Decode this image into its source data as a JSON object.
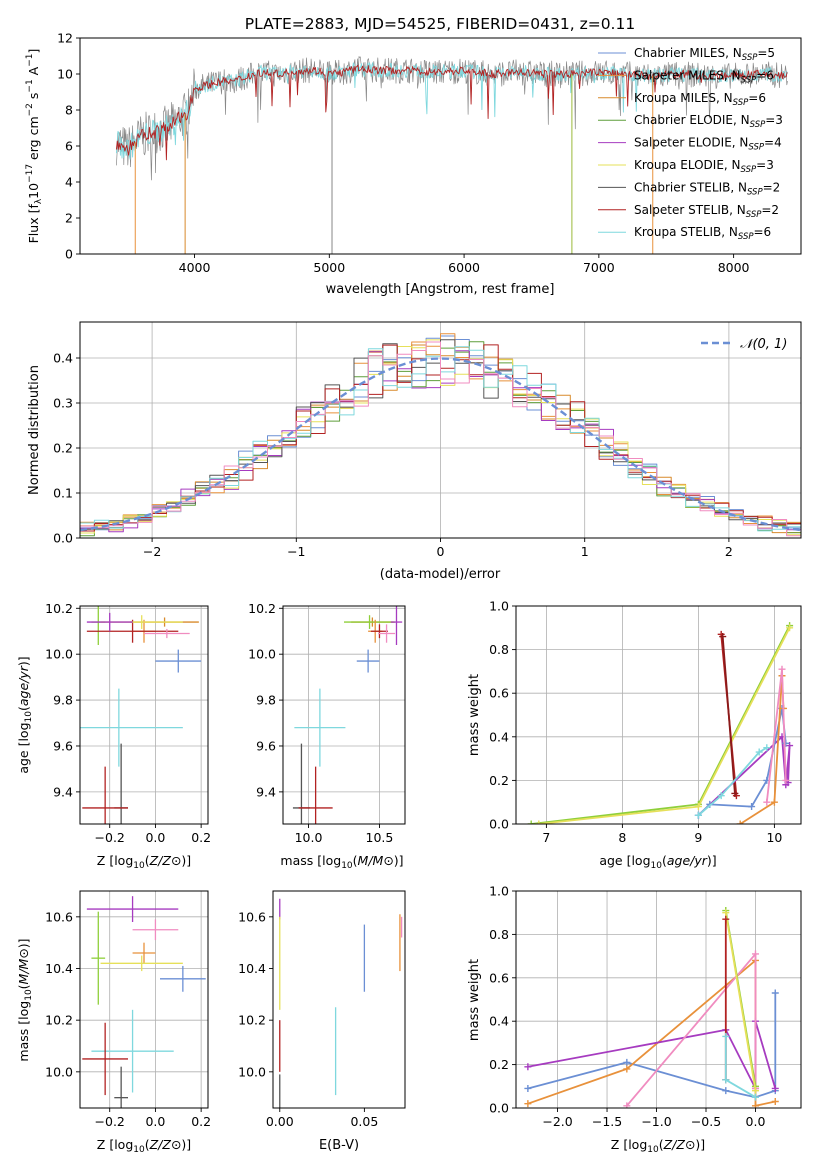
{
  "figure": {
    "title": "PLATE=2883, MJD=54525, FIBERID=0431, z=0.11"
  },
  "chart_data": [
    {
      "id": "spectrum",
      "type": "line",
      "xlabel": "wavelength [Angstrom, rest frame]",
      "ylabel": "Flux [fλ10⁻¹⁷ erg cm⁻² s⁻¹ A⁻¹]",
      "xlim": [
        3150,
        8500
      ],
      "ylim": [
        0,
        12
      ],
      "xticks": [
        4000,
        5000,
        6000,
        7000,
        8000
      ],
      "yticks": [
        0,
        2,
        4,
        6,
        8,
        10,
        12
      ],
      "grid": false,
      "legend_position": "right",
      "legend": [
        {
          "name": "Chabrier MILES, N",
          "sub": "SSP",
          "suffix": "=5",
          "color": "#6b8fd4"
        },
        {
          "name": "Salpeter MILES, N",
          "sub": "SSP",
          "suffix": "=6",
          "color": "#e8913b"
        },
        {
          "name": "Kroupa MILES, N",
          "sub": "SSP",
          "suffix": "=6",
          "color": "#d88a2c"
        },
        {
          "name": "Chabrier ELODIE, N",
          "sub": "SSP",
          "suffix": "=3",
          "color": "#5f9e3b"
        },
        {
          "name": "Salpeter ELODIE, N",
          "sub": "SSP",
          "suffix": "=4",
          "color": "#a63bc0"
        },
        {
          "name": "Kroupa ELODIE, N",
          "sub": "SSP",
          "suffix": "=3",
          "color": "#e6e05a"
        },
        {
          "name": "Chabrier STELIB, N",
          "sub": "SSP",
          "suffix": "=2",
          "color": "#555555"
        },
        {
          "name": "Salpeter STELIB, N",
          "sub": "SSP",
          "suffix": "=2",
          "color": "#b22222"
        },
        {
          "name": "Kroupa STELIB, N",
          "sub": "SSP",
          "suffix": "=6",
          "color": "#7fd8de"
        }
      ],
      "data_spectrum": {
        "x": [
          3420,
          3500,
          3600,
          3700,
          3800,
          3900,
          3950,
          4000,
          4100,
          4200,
          4300,
          4400,
          4500,
          4600,
          4700,
          4800,
          4900,
          5000,
          5100,
          5200,
          5400,
          5600,
          5800,
          6000,
          6200,
          6400,
          6600,
          6800,
          7000,
          7200,
          7400,
          7600,
          7800,
          8000,
          8200,
          8400
        ],
        "y": [
          6.2,
          5.8,
          6.5,
          6.8,
          7.0,
          7.6,
          7.9,
          9.2,
          9.4,
          9.6,
          9.6,
          9.9,
          10.1,
          10.0,
          10.1,
          10.2,
          10.2,
          10.0,
          10.1,
          10.3,
          10.2,
          10.2,
          10.1,
          10.2,
          10.0,
          10.1,
          10.0,
          10.0,
          10.1,
          10.0,
          9.9,
          10.0,
          9.9,
          9.9,
          10.0,
          9.9
        ]
      },
      "line_drops": [
        3560,
        3930,
        5020,
        6800,
        7400
      ]
    },
    {
      "id": "residual-histogram",
      "type": "line",
      "xlabel": "(data-model)/error",
      "ylabel": "Normed distribution",
      "xlim": [
        -2.5,
        2.5
      ],
      "ylim": [
        0,
        0.48
      ],
      "xticks": [
        -2,
        -1,
        0,
        1,
        2
      ],
      "yticks": [
        0.0,
        0.1,
        0.2,
        0.3,
        0.4
      ],
      "grid": true,
      "legend_position": "top-right",
      "legend": [
        {
          "name": "𝒩(0, 1)",
          "color": "#6b8fd4"
        }
      ],
      "gaussian": {
        "mean": 0,
        "sigma": 1
      }
    },
    {
      "id": "age-vs-Z",
      "type": "scatter",
      "xlabel": "Z [log10(Z/Z⊙)]",
      "ylabel": "age  [log10(age/yr)]",
      "xlim": [
        -0.33,
        0.23
      ],
      "ylim": [
        9.26,
        10.21
      ],
      "xticks": [
        -0.2,
        0.0,
        0.2
      ],
      "yticks": [
        9.4,
        9.6,
        9.8,
        10.0,
        10.2
      ],
      "grid": true,
      "points": [
        {
          "x": 0.04,
          "y": 10.14,
          "xerr": 0.15,
          "yerr": 0.02,
          "color": "#d88a2c"
        },
        {
          "x": -0.25,
          "y": 10.14,
          "xerr": 0.03,
          "yerr": 0.1,
          "color": "#8fcf3a"
        },
        {
          "x": -0.05,
          "y": 10.1,
          "xerr": 0.05,
          "yerr": 0.05,
          "color": "#e8913b"
        },
        {
          "x": -0.1,
          "y": 10.1,
          "xerr": 0.2,
          "yerr": 0.05,
          "color": "#b22222"
        },
        {
          "x": -0.06,
          "y": 10.14,
          "xerr": 0.18,
          "yerr": 0.03,
          "color": "#e6e05a"
        },
        {
          "x": 0.05,
          "y": 10.09,
          "xerr": 0.1,
          "yerr": 0.02,
          "color": "#f08cc0"
        },
        {
          "x": -0.2,
          "y": 10.14,
          "xerr": 0.1,
          "yerr": 0.04,
          "color": "#a63bc0"
        },
        {
          "x": 0.1,
          "y": 9.97,
          "xerr": 0.1,
          "yerr": 0.05,
          "color": "#6b8fd4"
        },
        {
          "x": -0.16,
          "y": 9.68,
          "xerr": 0.28,
          "yerr": 0.17,
          "color": "#7fd8de"
        },
        {
          "x": -0.15,
          "y": 9.33,
          "xerr": 0.03,
          "yerr": 0.28,
          "color": "#555555"
        },
        {
          "x": -0.22,
          "y": 9.33,
          "xerr": 0.1,
          "yerr": 0.18,
          "color": "#b22222"
        }
      ]
    },
    {
      "id": "age-vs-mass",
      "type": "scatter",
      "xlabel": "mass [log10(M/M⊙)]",
      "ylabel": "",
      "xlim": [
        9.82,
        10.68
      ],
      "ylim": [
        9.26,
        10.21
      ],
      "xticks": [
        10.0,
        10.5
      ],
      "yticks": [
        9.4,
        9.6,
        9.8,
        10.0,
        10.2
      ],
      "grid": true,
      "points": [
        {
          "x": 10.45,
          "y": 10.14,
          "xerr": 0.15,
          "yerr": 0.02,
          "color": "#d88a2c"
        },
        {
          "x": 10.43,
          "y": 10.14,
          "xerr": 0.18,
          "yerr": 0.03,
          "color": "#8fcf3a"
        },
        {
          "x": 10.47,
          "y": 10.1,
          "xerr": 0.05,
          "yerr": 0.05,
          "color": "#e8913b"
        },
        {
          "x": 10.5,
          "y": 10.1,
          "xerr": 0.06,
          "yerr": 0.03,
          "color": "#b22222"
        },
        {
          "x": 10.55,
          "y": 10.09,
          "xerr": 0.06,
          "yerr": 0.04,
          "color": "#f08cc0"
        },
        {
          "x": 10.62,
          "y": 10.14,
          "xerr": 0.04,
          "yerr": 0.1,
          "color": "#a63bc0"
        },
        {
          "x": 10.42,
          "y": 9.97,
          "xerr": 0.08,
          "yerr": 0.05,
          "color": "#6b8fd4"
        },
        {
          "x": 10.08,
          "y": 9.68,
          "xerr": 0.18,
          "yerr": 0.17,
          "color": "#7fd8de"
        },
        {
          "x": 9.95,
          "y": 9.33,
          "xerr": 0.06,
          "yerr": 0.28,
          "color": "#555555"
        },
        {
          "x": 10.05,
          "y": 9.33,
          "xerr": 0.12,
          "yerr": 0.18,
          "color": "#b22222"
        }
      ]
    },
    {
      "id": "mass-weight-vs-age",
      "type": "line",
      "xlabel": "age  [log10(age/yr)]",
      "ylabel": "mass weight",
      "xlim": [
        6.6,
        10.35
      ],
      "ylim": [
        0,
        1
      ],
      "xticks": [
        7,
        8,
        9,
        10
      ],
      "yticks": [
        0.0,
        0.2,
        0.4,
        0.6,
        0.8,
        1.0
      ],
      "grid": true,
      "series": [
        {
          "color": "#8fcf3a",
          "x": [
            6.8,
            9.0,
            10.2
          ],
          "y": [
            0.0,
            0.09,
            0.91
          ]
        },
        {
          "color": "#e6e05a",
          "x": [
            6.9,
            9.0,
            10.2
          ],
          "y": [
            0.0,
            0.08,
            0.9
          ]
        },
        {
          "color": "#b22222",
          "x": [
            9.3,
            9.5
          ],
          "y": [
            0.87,
            0.13
          ]
        },
        {
          "color": "#8b1a1a",
          "x": [
            9.32,
            9.48
          ],
          "y": [
            0.86,
            0.14
          ]
        },
        {
          "color": "#a63bc0",
          "x": [
            9.0,
            10.1,
            10.15,
            10.2,
            10.18
          ],
          "y": [
            0.04,
            0.4,
            0.18,
            0.36,
            0.19
          ]
        },
        {
          "color": "#6b8fd4",
          "x": [
            9.0,
            9.15,
            9.7,
            9.9,
            10.1,
            10.15
          ],
          "y": [
            0.04,
            0.09,
            0.08,
            0.2,
            0.53,
            0.37
          ]
        },
        {
          "color": "#e8913b",
          "x": [
            9.55,
            10.0,
            10.1,
            10.12
          ],
          "y": [
            0.0,
            0.1,
            0.68,
            0.53
          ]
        },
        {
          "color": "#f08cc0",
          "x": [
            9.9,
            10.1,
            10.15
          ],
          "y": [
            0.1,
            0.71,
            0.2
          ]
        },
        {
          "color": "#7fd8de",
          "x": [
            9.0,
            9.3,
            9.8,
            9.9
          ],
          "y": [
            0.04,
            0.13,
            0.33,
            0.35
          ]
        }
      ]
    },
    {
      "id": "mass-vs-Z",
      "type": "scatter",
      "xlabel": "Z [log10(Z/Z⊙)]",
      "ylabel": "mass [log10(M/M⊙)]",
      "xlim": [
        -0.33,
        0.23
      ],
      "ylim": [
        9.86,
        10.7
      ],
      "xticks": [
        -0.2,
        0.0,
        0.2
      ],
      "yticks": [
        10.0,
        10.2,
        10.4,
        10.6
      ],
      "grid": true,
      "points": [
        {
          "x": -0.1,
          "y": 10.63,
          "xerr": 0.2,
          "yerr": 0.05,
          "color": "#a63bc0"
        },
        {
          "x": 0.0,
          "y": 10.55,
          "xerr": 0.1,
          "yerr": 0.04,
          "color": "#f08cc0"
        },
        {
          "x": -0.05,
          "y": 10.46,
          "xerr": 0.05,
          "yerr": 0.04,
          "color": "#e8913b"
        },
        {
          "x": -0.25,
          "y": 10.44,
          "xerr": 0.03,
          "yerr": 0.18,
          "color": "#8fcf3a"
        },
        {
          "x": -0.06,
          "y": 10.42,
          "xerr": 0.18,
          "yerr": 0.03,
          "color": "#e6e05a"
        },
        {
          "x": 0.12,
          "y": 10.36,
          "xerr": 0.1,
          "yerr": 0.05,
          "color": "#6b8fd4"
        },
        {
          "x": -0.1,
          "y": 10.08,
          "xerr": 0.18,
          "yerr": 0.16,
          "color": "#7fd8de"
        },
        {
          "x": -0.22,
          "y": 10.05,
          "xerr": 0.1,
          "yerr": 0.14,
          "color": "#b22222"
        },
        {
          "x": -0.15,
          "y": 9.9,
          "xerr": 0.03,
          "yerr": 0.12,
          "color": "#555555"
        }
      ]
    },
    {
      "id": "mass-vs-EBV",
      "type": "scatter",
      "xlabel": "E(B-V)",
      "ylabel": "",
      "xlim": [
        -0.004,
        0.074
      ],
      "ylim": [
        9.86,
        10.7
      ],
      "xticks": [
        0.0,
        0.05
      ],
      "xticklabels": [
        "0.00",
        "0.05"
      ],
      "yticks": [
        10.0,
        10.2,
        10.4,
        10.6
      ],
      "grid": false,
      "points": [
        {
          "x": 0.0,
          "y": 10.63,
          "xerr": 0,
          "yerr": 0.04,
          "color": "#a63bc0"
        },
        {
          "x": 0.0,
          "y": 10.42,
          "xerr": 0,
          "yerr": 0.18,
          "color": "#e6e05a"
        },
        {
          "x": 0.0,
          "y": 10.1,
          "xerr": 0,
          "yerr": 0.1,
          "color": "#b22222"
        },
        {
          "x": 0.0,
          "y": 9.92,
          "xerr": 0,
          "yerr": 0.07,
          "color": "#555555"
        },
        {
          "x": 0.033,
          "y": 10.08,
          "xerr": 0,
          "yerr": 0.17,
          "color": "#7fd8de"
        },
        {
          "x": 0.05,
          "y": 10.44,
          "xerr": 0,
          "yerr": 0.13,
          "color": "#6b8fd4"
        },
        {
          "x": 0.071,
          "y": 10.5,
          "xerr": 0,
          "yerr": 0.11,
          "color": "#e8913b"
        },
        {
          "x": 0.072,
          "y": 10.56,
          "xerr": 0,
          "yerr": 0.04,
          "color": "#f08cc0"
        }
      ]
    },
    {
      "id": "mass-weight-vs-Z",
      "type": "line",
      "xlabel": "Z [log10(Z/Z⊙)]",
      "ylabel": "mass weight",
      "xlim": [
        -2.42,
        0.46
      ],
      "ylim": [
        0,
        1
      ],
      "xticks": [
        -2.0,
        -1.5,
        -1.0,
        -0.5,
        0.0
      ],
      "yticks": [
        0.0,
        0.2,
        0.4,
        0.6,
        0.8,
        1.0
      ],
      "grid": true,
      "series": [
        {
          "color": "#6b8fd4",
          "x": [
            -2.3,
            -1.3,
            -0.3,
            0.0,
            0.2,
            0.2
          ],
          "y": [
            0.09,
            0.21,
            0.08,
            0.05,
            0.08,
            0.53
          ]
        },
        {
          "color": "#e8913b",
          "x": [
            -2.3,
            -1.3,
            0.0,
            0.0,
            0.2
          ],
          "y": [
            0.02,
            0.18,
            0.68,
            0.01,
            0.03
          ]
        },
        {
          "color": "#a63bc0",
          "x": [
            -2.3,
            -0.3,
            0.0,
            0.0,
            0.2
          ],
          "y": [
            0.19,
            0.36,
            0.09,
            0.4,
            0.09
          ]
        },
        {
          "color": "#f08cc0",
          "x": [
            -1.3,
            0.0,
            0.0
          ],
          "y": [
            0.01,
            0.71,
            0.09
          ]
        },
        {
          "color": "#8fcf3a",
          "x": [
            -0.3,
            0.0
          ],
          "y": [
            0.91,
            0.1
          ]
        },
        {
          "color": "#e6e05a",
          "x": [
            -0.3,
            0.0
          ],
          "y": [
            0.9,
            0.08
          ]
        },
        {
          "color": "#b22222",
          "x": [
            -0.3,
            -0.3
          ],
          "y": [
            0.87,
            0.13
          ]
        },
        {
          "color": "#7fd8de",
          "x": [
            -0.3,
            -0.3,
            0.0
          ],
          "y": [
            0.33,
            0.13,
            0.05
          ]
        }
      ]
    }
  ]
}
